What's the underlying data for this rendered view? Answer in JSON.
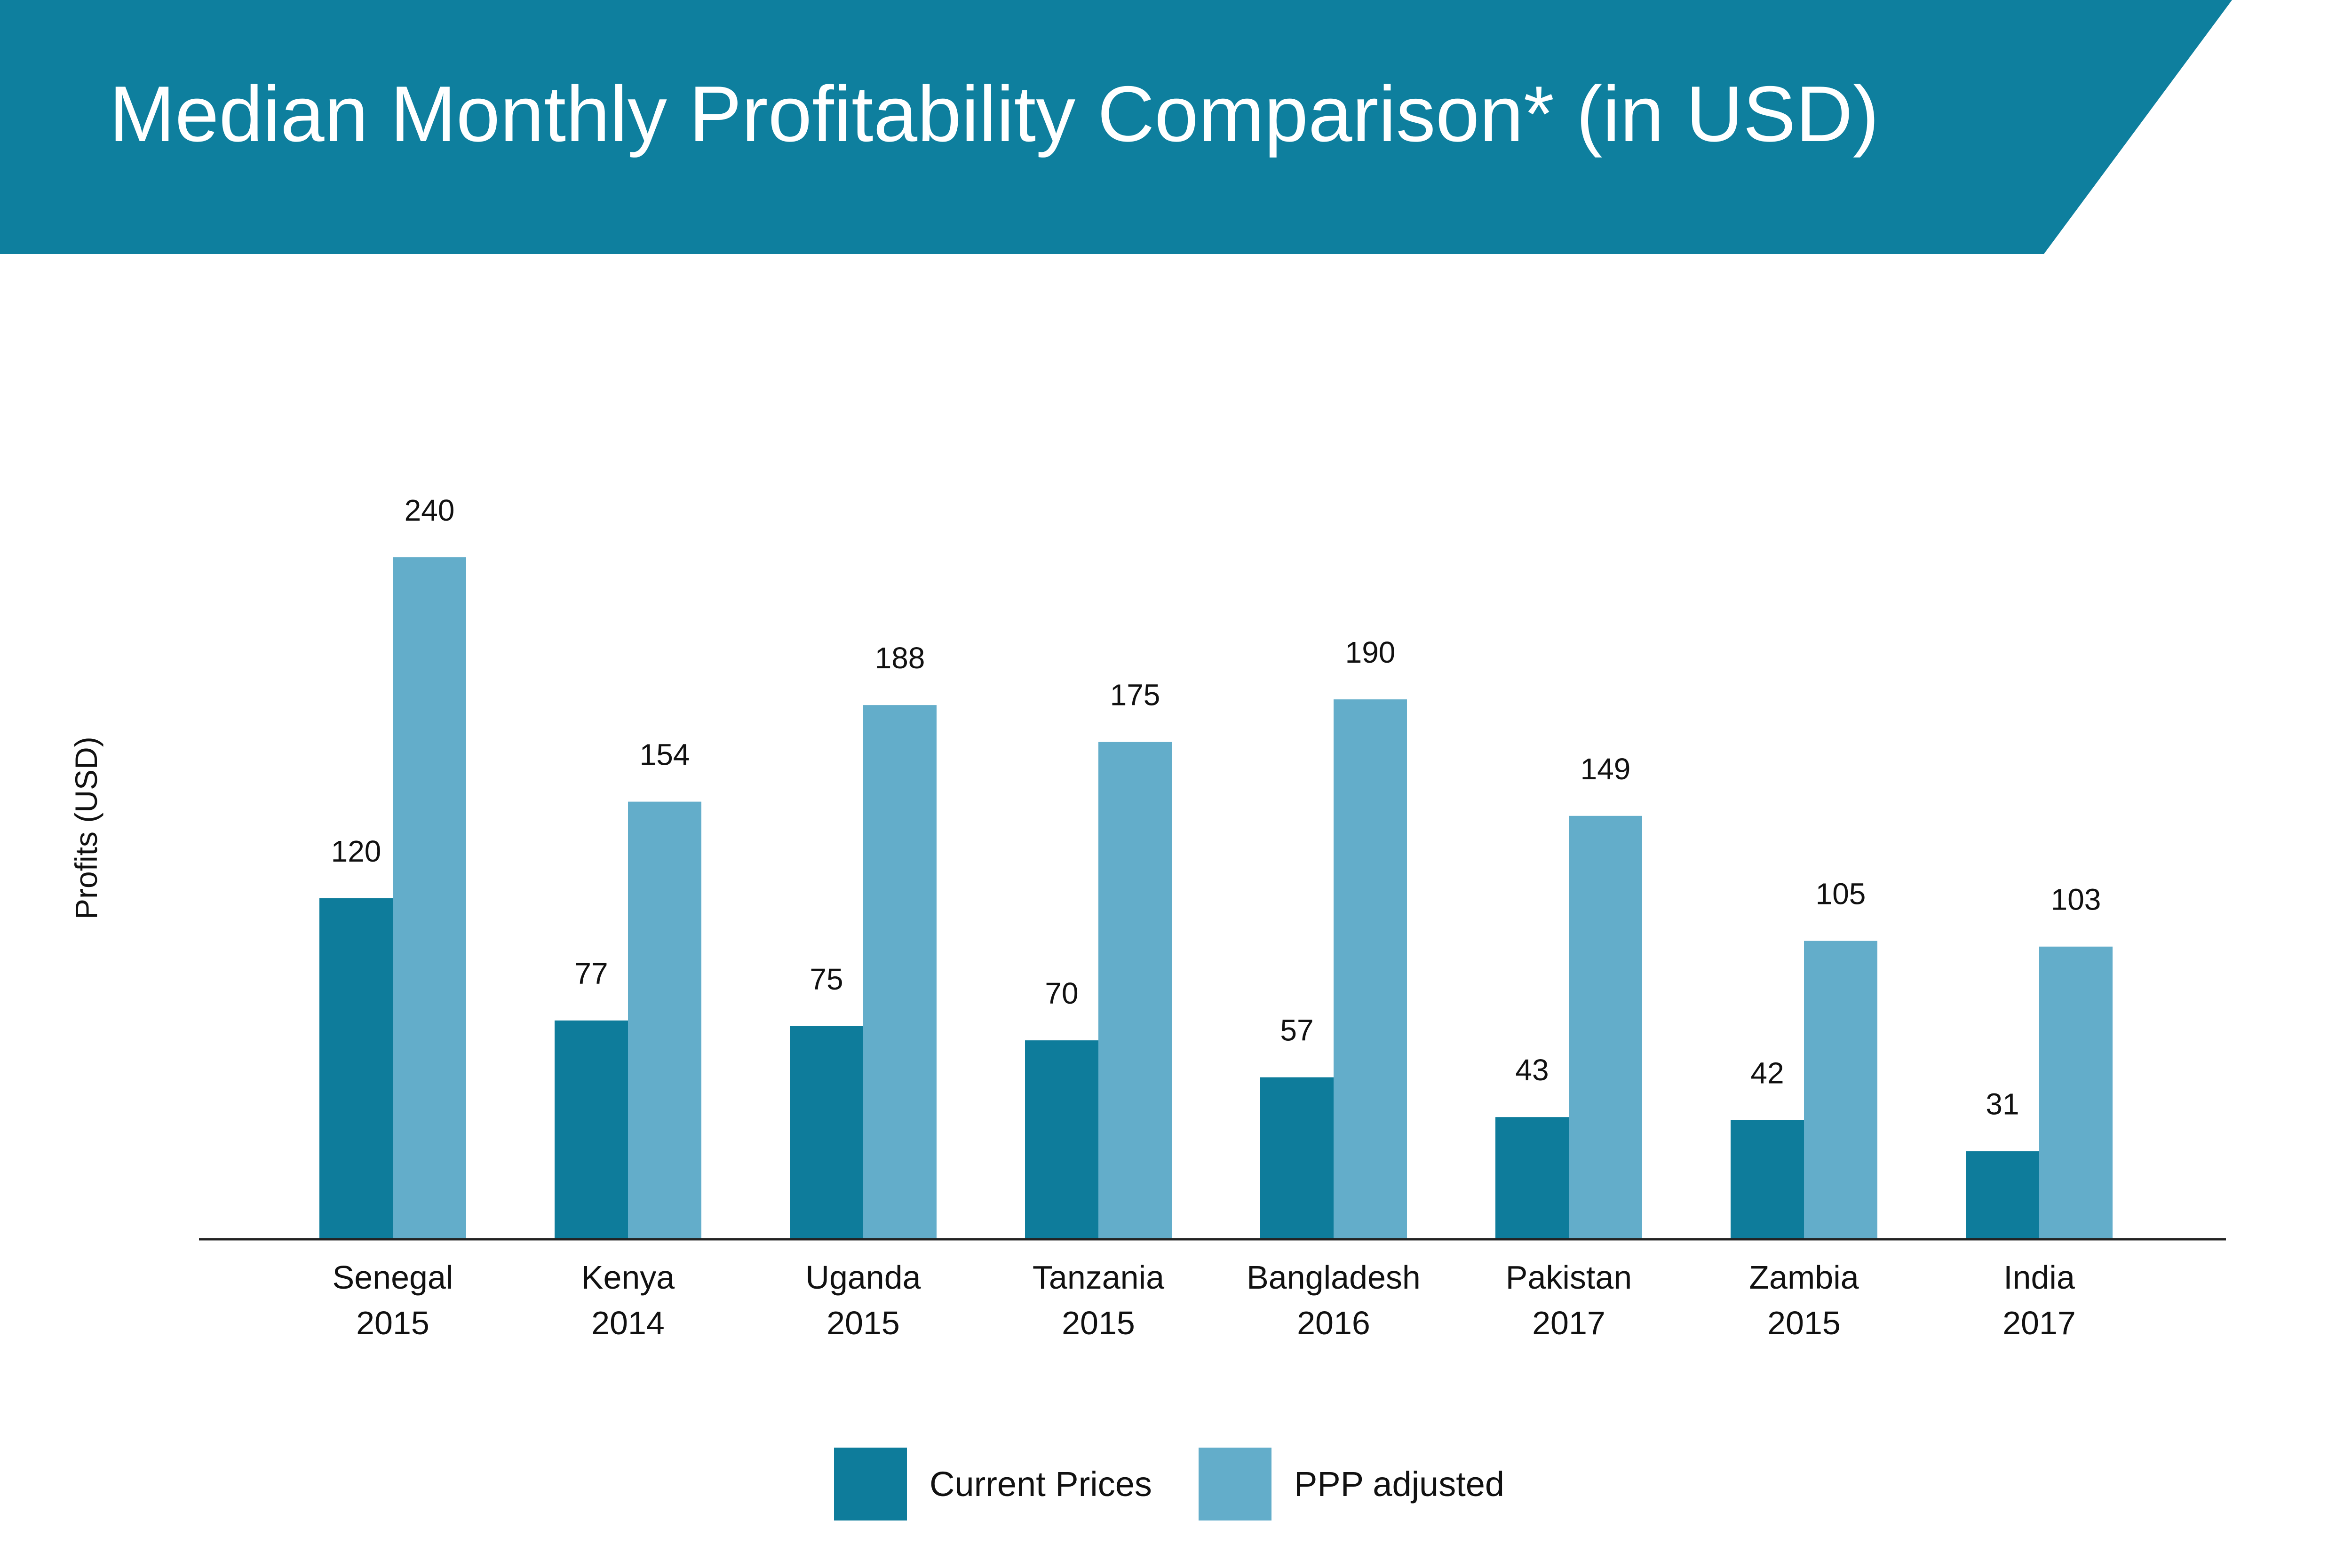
{
  "header": {
    "title": "Median Monthly Profitability Comparison* (in USD)"
  },
  "colors": {
    "banner": "#0e7f9e",
    "current": "#0e7c9b",
    "ppp": "#63adca",
    "axis": "#222222",
    "text": "#111111"
  },
  "chart_data": {
    "type": "bar",
    "title": "Median Monthly Profitability Comparison* (in USD)",
    "ylabel": "Profits (USD)",
    "xlabel": "",
    "ylim": [
      0,
      240
    ],
    "grid": false,
    "legend_position": "bottom",
    "categories": [
      [
        "Senegal",
        "2015"
      ],
      [
        "Kenya",
        "2014"
      ],
      [
        "Uganda",
        "2015"
      ],
      [
        "Tanzania",
        "2015"
      ],
      [
        "Bangladesh",
        "2016"
      ],
      [
        "Pakistan",
        "2017"
      ],
      [
        "Zambia",
        "2015"
      ],
      [
        "India",
        "2017"
      ]
    ],
    "series": [
      {
        "name": "Current Prices",
        "color": "#0e7c9b",
        "values": [
          120,
          77,
          75,
          70,
          57,
          43,
          42,
          31
        ]
      },
      {
        "name": "PPP adjusted",
        "color": "#63adca",
        "values": [
          240,
          154,
          188,
          175,
          190,
          149,
          105,
          103
        ]
      }
    ]
  }
}
